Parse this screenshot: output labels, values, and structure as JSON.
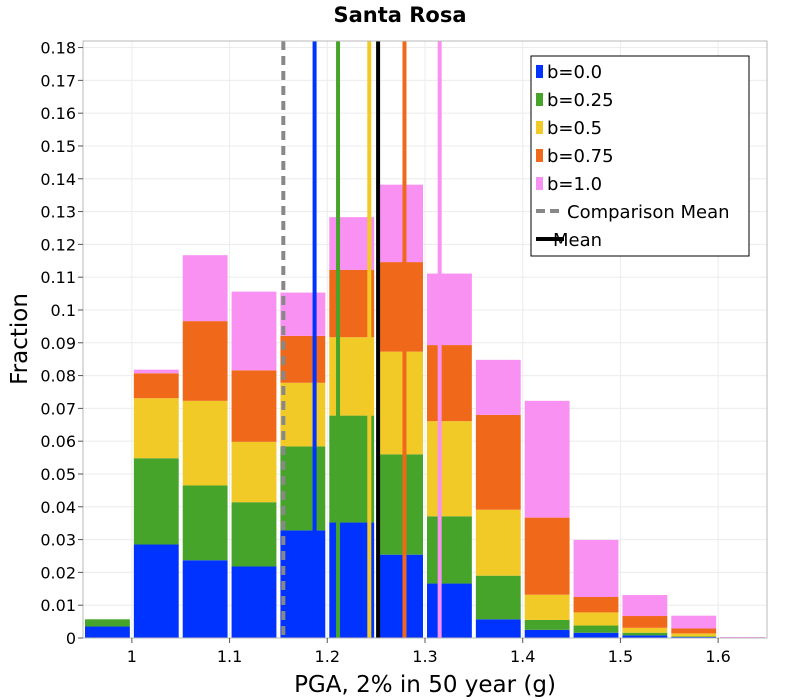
{
  "chart_data": {
    "type": "bar",
    "stacked": true,
    "title": "Santa Rosa",
    "xlabel": "PGA, 2% in 50 year (g)",
    "ylabel": "Fraction",
    "xlim": [
      0.95,
      1.65
    ],
    "ylim": [
      0,
      0.182
    ],
    "xticks": [
      {
        "value": 1.0,
        "label": "1"
      },
      {
        "value": 1.1,
        "label": "1.1"
      },
      {
        "value": 1.2,
        "label": "1.2"
      },
      {
        "value": 1.3,
        "label": "1.3"
      },
      {
        "value": 1.4,
        "label": "1.4"
      },
      {
        "value": 1.5,
        "label": "1.5"
      },
      {
        "value": 1.6,
        "label": "1.6"
      }
    ],
    "yticks": [
      {
        "value": 0,
        "label": "0"
      },
      {
        "value": 0.01,
        "label": "0.01"
      },
      {
        "value": 0.02,
        "label": "0.02"
      },
      {
        "value": 0.03,
        "label": "0.03"
      },
      {
        "value": 0.04,
        "label": "0.04"
      },
      {
        "value": 0.05,
        "label": "0.05"
      },
      {
        "value": 0.06,
        "label": "0.06"
      },
      {
        "value": 0.07,
        "label": "0.07"
      },
      {
        "value": 0.08,
        "label": "0.08"
      },
      {
        "value": 0.09,
        "label": "0.09"
      },
      {
        "value": 0.1,
        "label": "0.1"
      },
      {
        "value": 0.11,
        "label": "0.11"
      },
      {
        "value": 0.12,
        "label": "0.12"
      },
      {
        "value": 0.13,
        "label": "0.13"
      },
      {
        "value": 0.14,
        "label": "0.14"
      },
      {
        "value": 0.15,
        "label": "0.15"
      },
      {
        "value": 0.16,
        "label": "0.16"
      },
      {
        "value": 0.17,
        "label": "0.17"
      },
      {
        "value": 0.18,
        "label": "0.18"
      }
    ],
    "bin_width": 0.05,
    "bin_centers": [
      0.975,
      1.025,
      1.075,
      1.125,
      1.175,
      1.225,
      1.275,
      1.325,
      1.375,
      1.425,
      1.475,
      1.525,
      1.575,
      1.625
    ],
    "series": [
      {
        "name": "b=0.0",
        "color": "#0033ff",
        "values": [
          0.0035,
          0.0285,
          0.0237,
          0.0218,
          0.0328,
          0.0352,
          0.0254,
          0.0166,
          0.0057,
          0.0025,
          0.0016,
          0.0008,
          0.0003,
          0.0
        ]
      },
      {
        "name": "b=0.25",
        "color": "#47a42a",
        "values": [
          0.0022,
          0.0263,
          0.0228,
          0.0196,
          0.0256,
          0.0326,
          0.0306,
          0.0205,
          0.0133,
          0.003,
          0.0022,
          0.0008,
          0.0002,
          0.0
        ]
      },
      {
        "name": "b=0.5",
        "color": "#f2ca28",
        "values": [
          0.0,
          0.0183,
          0.0258,
          0.0184,
          0.0194,
          0.0239,
          0.0313,
          0.029,
          0.0201,
          0.0077,
          0.004,
          0.0015,
          0.0009,
          0.0
        ]
      },
      {
        "name": "b=0.75",
        "color": "#f0691a",
        "values": [
          0.0,
          0.0076,
          0.0243,
          0.0218,
          0.0143,
          0.0205,
          0.0273,
          0.0232,
          0.0289,
          0.0235,
          0.0047,
          0.0036,
          0.0015,
          0.0
        ]
      },
      {
        "name": "b=1.0",
        "color": "#f991f3",
        "values": [
          0.0,
          0.0011,
          0.0201,
          0.024,
          0.0132,
          0.0161,
          0.0236,
          0.0218,
          0.0168,
          0.0356,
          0.0174,
          0.0064,
          0.0039,
          0.0003
        ]
      }
    ],
    "vertical_lines": [
      {
        "name": "b=0.0 mean",
        "x": 1.187,
        "color": "#0033ff",
        "style": "solid"
      },
      {
        "name": "b=0.25 mean",
        "x": 1.211,
        "color": "#47a42a",
        "style": "solid"
      },
      {
        "name": "b=0.5 mean",
        "x": 1.243,
        "color": "#f2ca28",
        "style": "solid"
      },
      {
        "name": "b=0.75 mean",
        "x": 1.279,
        "color": "#f0691a",
        "style": "solid"
      },
      {
        "name": "b=1.0 mean",
        "x": 1.315,
        "color": "#f991f3",
        "style": "solid"
      },
      {
        "name": "Comparison Mean",
        "x": 1.155,
        "color": "#888888",
        "style": "dashed"
      },
      {
        "name": "Mean",
        "x": 1.252,
        "color": "#000000",
        "style": "solid"
      }
    ],
    "legend": {
      "position": "top-right",
      "entries": [
        {
          "label": "b=0.0",
          "color": "#0033ff",
          "kind": "box"
        },
        {
          "label": "b=0.25",
          "color": "#47a42a",
          "kind": "box"
        },
        {
          "label": "b=0.5",
          "color": "#f2ca28",
          "kind": "box"
        },
        {
          "label": "b=0.75",
          "color": "#f0691a",
          "kind": "box"
        },
        {
          "label": "b=1.0",
          "color": "#f991f3",
          "kind": "box"
        },
        {
          "label": "Comparison Mean",
          "color": "#888888",
          "kind": "dashed"
        },
        {
          "label": "Mean",
          "color": "#000000",
          "kind": "line"
        }
      ]
    },
    "grid": true
  }
}
